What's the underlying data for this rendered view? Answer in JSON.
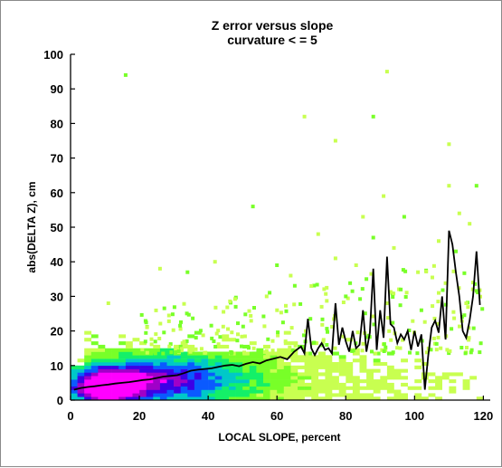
{
  "chart_data": {
    "type": "heatmap",
    "title": "Z error versus slope",
    "subtitle": "curvature < = 5",
    "xlabel": "LOCAL SLOPE, percent",
    "ylabel": "abs(DELTA Z), cm",
    "xlim": [
      0,
      122
    ],
    "ylim": [
      0,
      100
    ],
    "x_ticks": [
      "0",
      "20",
      "40",
      "60",
      "80",
      "100",
      "120"
    ],
    "y_ticks": [
      "0",
      "10",
      "20",
      "30",
      "40",
      "50",
      "60",
      "70",
      "80",
      "90",
      "100"
    ],
    "colormap_order": [
      "#c8ff50",
      "#78ff28",
      "#14f068",
      "#00c8c8",
      "#0a5aff",
      "#3c00e6",
      "#a000c8",
      "#ff00ff"
    ],
    "line_color": "#000000",
    "density_description": "2D histogram of points; highest density (magenta) near slope 5-15 and error 0-8 cm, spreading to sparse green points at higher slopes",
    "outliers": [
      {
        "x": 16,
        "y": 94
      },
      {
        "x": 92,
        "y": 95
      },
      {
        "x": 68,
        "y": 82
      },
      {
        "x": 88,
        "y": 82
      },
      {
        "x": 110,
        "y": 74
      },
      {
        "x": 77,
        "y": 75
      },
      {
        "x": 118,
        "y": 62
      },
      {
        "x": 110,
        "y": 62
      },
      {
        "x": 91,
        "y": 59
      },
      {
        "x": 53,
        "y": 56
      },
      {
        "x": 113,
        "y": 54
      },
      {
        "x": 85,
        "y": 53
      },
      {
        "x": 97,
        "y": 53
      },
      {
        "x": 116,
        "y": 51
      },
      {
        "x": 72,
        "y": 48
      },
      {
        "x": 88,
        "y": 47
      },
      {
        "x": 107,
        "y": 46
      },
      {
        "x": 94,
        "y": 44
      },
      {
        "x": 112,
        "y": 43
      },
      {
        "x": 77,
        "y": 41
      },
      {
        "x": 42,
        "y": 40
      },
      {
        "x": 60,
        "y": 39
      },
      {
        "x": 83,
        "y": 39
      },
      {
        "x": 26,
        "y": 38
      },
      {
        "x": 34,
        "y": 37
      },
      {
        "x": 101,
        "y": 37
      },
      {
        "x": 64,
        "y": 36
      },
      {
        "x": 86,
        "y": 35
      },
      {
        "x": 117,
        "y": 34
      },
      {
        "x": 70,
        "y": 33
      },
      {
        "x": 96,
        "y": 32
      },
      {
        "x": 107,
        "y": 31
      },
      {
        "x": 115,
        "y": 28
      },
      {
        "x": 80,
        "y": 30
      },
      {
        "x": 57,
        "y": 30
      },
      {
        "x": 11,
        "y": 28
      },
      {
        "x": 48,
        "y": 27
      },
      {
        "x": 73,
        "y": 27
      },
      {
        "x": 92,
        "y": 28
      },
      {
        "x": 102,
        "y": 26
      }
    ],
    "series": [
      {
        "values_x": [
          1,
          3,
          5,
          7,
          9,
          11,
          13,
          15,
          17,
          19,
          21,
          23,
          25,
          27,
          29,
          31,
          33,
          35,
          37,
          39,
          41,
          43,
          45,
          47,
          49,
          51,
          53,
          55,
          57,
          59,
          61,
          63,
          65,
          67,
          68,
          69,
          70,
          71,
          72,
          73,
          74,
          75,
          76,
          77,
          78,
          79,
          80,
          81,
          82,
          83,
          84,
          85,
          86,
          87,
          88,
          89,
          90,
          91,
          92,
          93,
          94,
          95,
          96,
          97,
          98,
          99,
          100,
          101,
          102,
          103,
          104,
          105,
          106,
          107,
          108,
          109,
          110,
          111,
          112,
          113,
          114,
          115,
          116,
          117,
          118,
          119
        ],
        "values_y": [
          3,
          3.5,
          3.8,
          4,
          4.3,
          4.5,
          4.8,
          5,
          5.2,
          5.5,
          5.8,
          6,
          6.4,
          6.8,
          7,
          7.2,
          7.8,
          8.5,
          8.8,
          9,
          9.2,
          9.6,
          10,
          10.2,
          9.8,
          10.5,
          11,
          10.6,
          11.5,
          12,
          12.5,
          11.8,
          14,
          15.5,
          13.5,
          23.5,
          15,
          13,
          15,
          16.5,
          14.5,
          15,
          13.5,
          28,
          16,
          21,
          17,
          14,
          20,
          15,
          16,
          26,
          14,
          19.5,
          38,
          14.5,
          26,
          18,
          41.5,
          22,
          21,
          16.5,
          19,
          17.5,
          20,
          14.5,
          20,
          15.5,
          19,
          3,
          13,
          21,
          23,
          19.5,
          30,
          17.5,
          49,
          45,
          37,
          30,
          20,
          18,
          23,
          30,
          43,
          27.5
        ]
      }
    ]
  }
}
